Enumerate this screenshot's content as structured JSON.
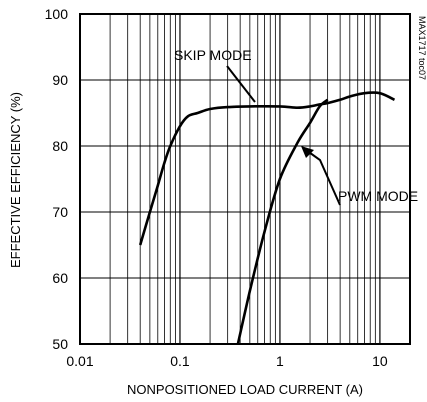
{
  "chart_data": {
    "type": "line",
    "title": "",
    "xlabel": "NONPOSITIONED LOAD CURRENT (A)",
    "ylabel": "EFFECTIVE EFFICIENCY (%)",
    "x_scale": "log",
    "xlim": [
      0.01,
      20
    ],
    "ylim": [
      50,
      100
    ],
    "x_ticks": [
      0.01,
      0.1,
      1,
      10
    ],
    "x_tick_labels": [
      "0.01",
      "0.1",
      "1",
      "10"
    ],
    "y_ticks": [
      50,
      60,
      70,
      80,
      90,
      100
    ],
    "y_tick_labels": [
      "50",
      "60",
      "70",
      "80",
      "90",
      "100"
    ],
    "grid": true,
    "series": [
      {
        "name": "SKIP MODE",
        "x": [
          0.04,
          0.05,
          0.06,
          0.07,
          0.08,
          0.1,
          0.12,
          0.15,
          0.2,
          0.3,
          0.5,
          1,
          1.5,
          2,
          2.5,
          3,
          4,
          5,
          7,
          10,
          14
        ],
        "y": [
          65,
          70,
          74,
          77.5,
          80,
          83,
          84.5,
          85,
          85.6,
          85.9,
          86,
          86,
          85.8,
          86,
          86.3,
          86.5,
          87,
          87.5,
          88,
          88,
          87
        ]
      },
      {
        "name": "PWM MODE",
        "x": [
          0.38,
          0.5,
          0.7,
          1.0,
          1.5,
          2.0,
          2.5,
          3.0
        ],
        "y": [
          50,
          58,
          67,
          75,
          80.5,
          83.5,
          86,
          87
        ]
      }
    ],
    "annotations": [
      "SKIP MODE",
      "PWM MODE"
    ],
    "figure_code": "MAX1717 toc07"
  }
}
